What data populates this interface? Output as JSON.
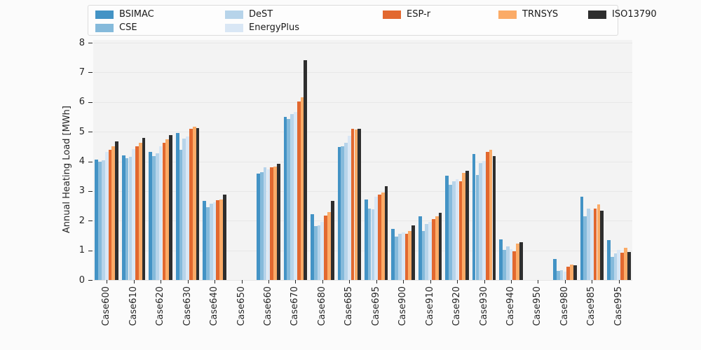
{
  "chart_data": {
    "type": "bar",
    "title": "",
    "xlabel": "",
    "ylabel": "Annual Heating Load [MWh]",
    "ylim": [
      0,
      8
    ],
    "y_ticks": [
      0,
      1,
      2,
      3,
      4,
      5,
      6,
      7,
      8
    ],
    "grid": true,
    "legend_position": "top",
    "categories": [
      "Case600",
      "Case610",
      "Case620",
      "Case630",
      "Case640",
      "Case650",
      "Case660",
      "Case670",
      "Case680",
      "Case685",
      "Case695",
      "Case900",
      "Case910",
      "Case920",
      "Case930",
      "Case940",
      "Case950",
      "Case980",
      "Case985",
      "Case995"
    ],
    "series": [
      {
        "name": "BSIMAC",
        "color": "#4393c5",
        "values": [
          4.06,
          4.21,
          4.31,
          4.95,
          2.66,
          0,
          3.59,
          5.51,
          2.23,
          4.48,
          2.71,
          1.73,
          2.16,
          3.52,
          4.26,
          1.38,
          0,
          0.72,
          2.81,
          1.34
        ]
      },
      {
        "name": "CSE",
        "color": "#85badb",
        "values": [
          4.0,
          4.11,
          4.17,
          4.38,
          2.45,
          0,
          3.64,
          5.44,
          1.81,
          4.52,
          2.41,
          1.46,
          1.65,
          3.2,
          3.54,
          1.02,
          0,
          0.3,
          2.16,
          0.79
        ]
      },
      {
        "name": "DeST",
        "color": "#b7d4ea",
        "values": [
          4.03,
          4.16,
          4.27,
          4.77,
          2.58,
          0,
          3.8,
          5.6,
          1.84,
          4.62,
          2.38,
          1.55,
          1.89,
          3.34,
          3.95,
          1.14,
          0,
          0.33,
          2.4,
          0.89
        ]
      },
      {
        "name": "EnergyPlus",
        "color": "#d9e7f5",
        "values": [
          4.33,
          4.41,
          4.52,
          4.85,
          2.63,
          0,
          3.74,
          5.66,
          1.97,
          4.87,
          2.81,
          1.6,
          1.97,
          3.41,
          4.01,
          1.04,
          0,
          0.28,
          2.36,
          1.02
        ]
      },
      {
        "name": "ESP-r",
        "color": "#e2682f",
        "values": [
          4.4,
          4.52,
          4.63,
          5.09,
          2.68,
          0,
          3.79,
          6.02,
          2.17,
          5.09,
          2.87,
          1.57,
          2.06,
          3.33,
          4.33,
          0.98,
          0,
          0.45,
          2.41,
          0.92
        ]
      },
      {
        "name": "TRNSYS",
        "color": "#fbab67",
        "values": [
          4.52,
          4.63,
          4.74,
          5.17,
          2.72,
          0,
          3.83,
          6.16,
          2.28,
          5.07,
          2.95,
          1.66,
          2.14,
          3.62,
          4.39,
          1.22,
          0,
          0.52,
          2.54,
          1.08
        ]
      },
      {
        "name": "ISO13790",
        "color": "#2e2e2e",
        "values": [
          4.67,
          4.8,
          4.88,
          5.13,
          2.89,
          0,
          3.91,
          7.41,
          2.66,
          5.11,
          3.17,
          1.85,
          2.27,
          3.69,
          4.18,
          1.27,
          0,
          0.5,
          2.34,
          0.94
        ]
      }
    ],
    "legend_columns": [
      [
        "BSIMAC",
        "CSE"
      ],
      [
        "DeST",
        "EnergyPlus"
      ],
      [
        "ESP-r"
      ],
      [
        "TRNSYS"
      ],
      [
        "ISO13790"
      ]
    ]
  },
  "layout_colors": {
    "figure_bg": "#fbfbfb",
    "axes_bg": "#f3f3f3",
    "grid": "#e7e7e7"
  }
}
